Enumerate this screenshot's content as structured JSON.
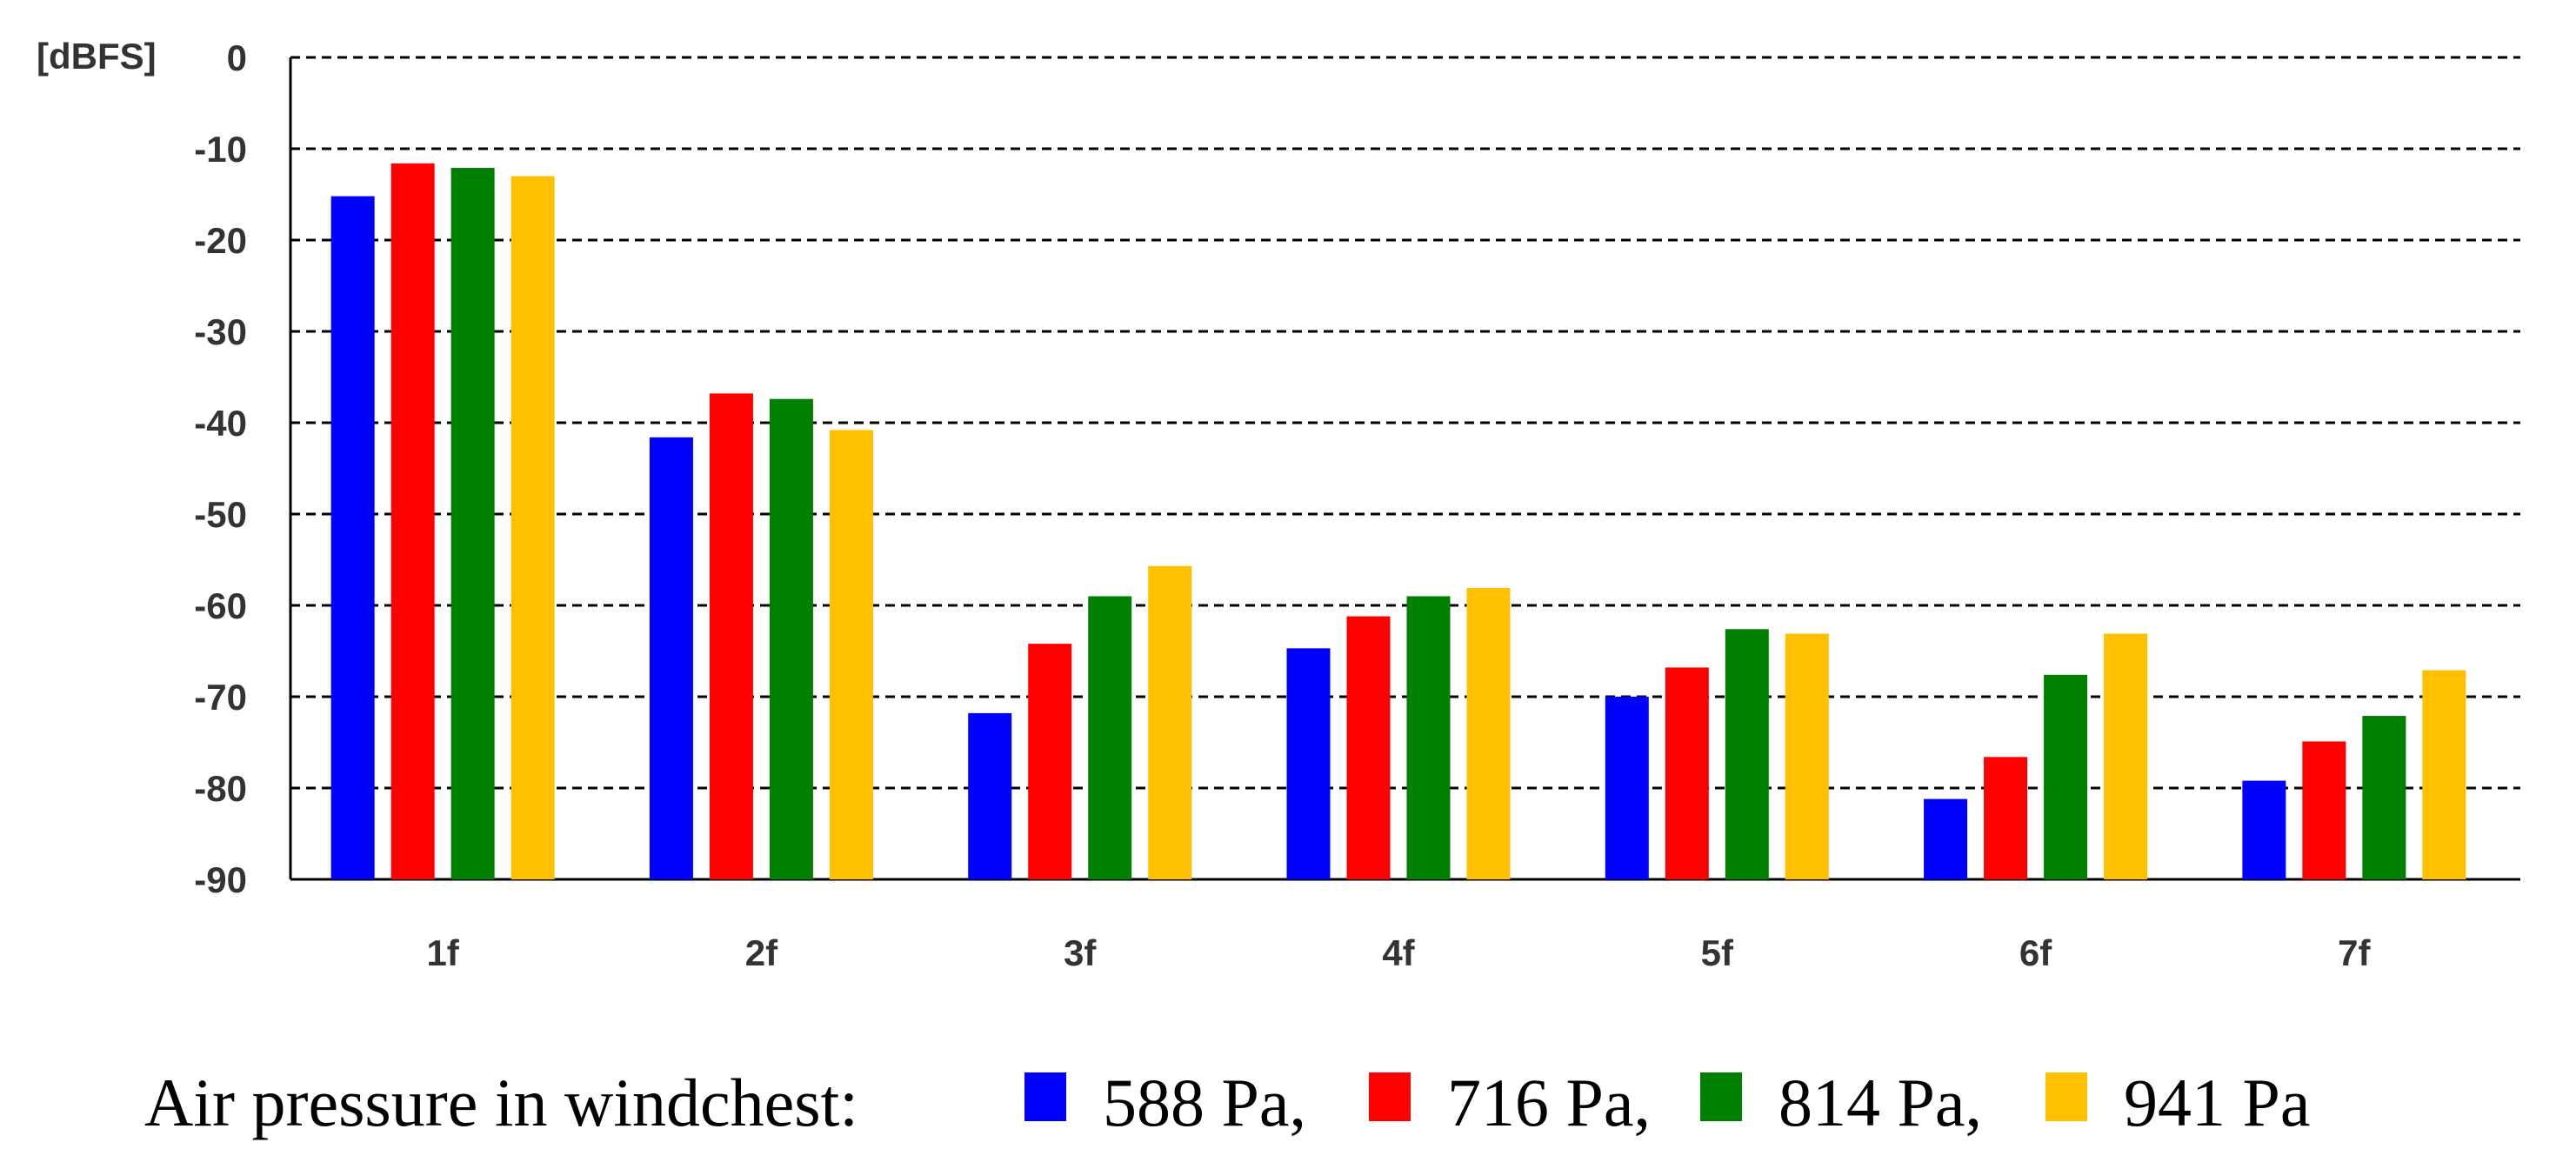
{
  "chart_data": {
    "type": "bar",
    "y_unit_label": "[dBFS]",
    "ylim": [
      -90,
      0
    ],
    "y_ticks": [
      "0",
      "-10",
      "-20",
      "-30",
      "-40",
      "-50",
      "-60",
      "-70",
      "-80",
      "-90"
    ],
    "grid": "horizontal dashed",
    "categories": [
      "1f",
      "2f",
      "3f",
      "4f",
      "5f",
      "6f",
      "7f"
    ],
    "series": [
      {
        "name": "588 Pa",
        "color": "#0000ff",
        "values": [
          -15.2,
          -41.6,
          -71.8,
          -64.7,
          -70.0,
          -81.2,
          -79.2
        ]
      },
      {
        "name": "716 Pa",
        "color": "#ff0000",
        "values": [
          -11.6,
          -36.8,
          -64.2,
          -61.2,
          -66.8,
          -76.6,
          -74.9
        ]
      },
      {
        "name": "814 Pa",
        "color": "#008000",
        "values": [
          -12.1,
          -37.4,
          -59.0,
          -59.0,
          -62.6,
          -67.6,
          -72.1
        ]
      },
      {
        "name": "941 Pa",
        "color": "#ffc000",
        "values": [
          -13.0,
          -40.8,
          -55.7,
          -58.1,
          -63.1,
          -63.1,
          -67.1
        ]
      }
    ],
    "legend": {
      "position": "bottom",
      "label": "Air pressure in windchest:",
      "items": [
        "588 Pa,",
        "716 Pa,",
        "814 Pa,",
        "941 Pa"
      ]
    }
  }
}
